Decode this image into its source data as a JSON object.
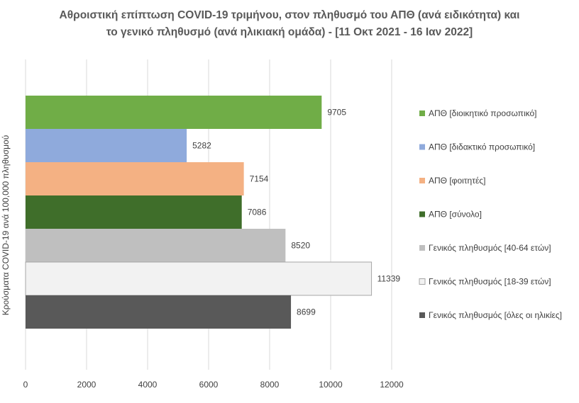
{
  "chart_data": {
    "type": "bar",
    "orientation": "horizontal",
    "title_lines": [
      "Αθροιστική επίπτωση COVID-19 τριμήνου, στον πληθυσμό του ΑΠΘ (ανά ειδικότητα) και",
      "το γενικό πληθυσμό (ανά ηλικιακή ομάδα) - [11 Οκτ 2021 - 16 Ιαν 2022]"
    ],
    "xlabel": "",
    "ylabel": "Κρούσματα COVID-19 ανά 100,000 πληθυσμού",
    "xlim": [
      0,
      12000
    ],
    "x_ticks": [
      "0",
      "2000",
      "4000",
      "6000",
      "8000",
      "10000",
      "12000"
    ],
    "grid": true,
    "legend_position": "right",
    "series": [
      {
        "name": "ΑΠΘ [διοικητικό προσωπικό]",
        "value": 9705,
        "label": "9705",
        "color": "#70ad47"
      },
      {
        "name": "ΑΠΘ [διδακτικό προσωπικό]",
        "value": 5282,
        "label": "5282",
        "color": "#8faadc"
      },
      {
        "name": "ΑΠΘ [φοιτητές]",
        "value": 7154,
        "label": "7154",
        "color": "#f4b183"
      },
      {
        "name": "ΑΠΘ [σύνολο]",
        "value": 7086,
        "label": "7086",
        "color": "#3f6e2a"
      },
      {
        "name": "Γενικός πληθυσμός [40-64 ετών]",
        "value": 8520,
        "label": "8520",
        "color": "#bfbfbf"
      },
      {
        "name": "Γενικός πληθυσμός [18-39 ετών]",
        "value": 11339,
        "label": "11339",
        "color": "#f2f2f2"
      },
      {
        "name": "Γενικός πληθυσμός [όλες οι ηλικίες]",
        "value": 8699,
        "label": "8699",
        "color": "#595959"
      }
    ]
  }
}
